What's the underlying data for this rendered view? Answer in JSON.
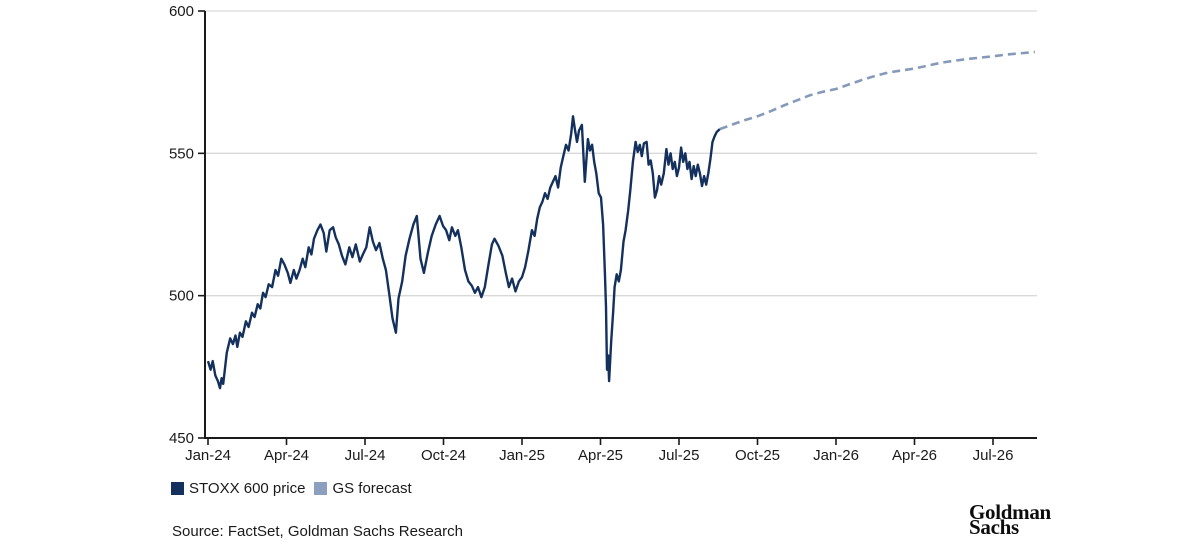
{
  "chart_data": {
    "type": "line",
    "title": "",
    "xlabel": "",
    "ylabel": "",
    "grid": true,
    "legend_position": "bottom-left",
    "y_axis": {
      "ticks": [
        450,
        500,
        550,
        600
      ],
      "range": [
        450,
        600
      ]
    },
    "x_axis": {
      "unit": "months-since-Jan-2024",
      "ticks": [
        {
          "label": "Jan-24",
          "m": 0
        },
        {
          "label": "Apr-24",
          "m": 3
        },
        {
          "label": "Jul-24",
          "m": 6
        },
        {
          "label": "Oct-24",
          "m": 9
        },
        {
          "label": "Jan-25",
          "m": 12
        },
        {
          "label": "Apr-25",
          "m": 15
        },
        {
          "label": "Jul-25",
          "m": 18
        },
        {
          "label": "Oct-25",
          "m": 21
        },
        {
          "label": "Jan-26",
          "m": 24
        },
        {
          "label": "Apr-26",
          "m": 27
        },
        {
          "label": "Jul-26",
          "m": 30
        }
      ]
    },
    "series": [
      {
        "name": "STOXX 600 price",
        "style": "solid",
        "color": "#14315e",
        "points": [
          [
            0.0,
            477
          ],
          [
            0.1,
            474
          ],
          [
            0.18,
            477
          ],
          [
            0.28,
            472
          ],
          [
            0.38,
            470
          ],
          [
            0.46,
            467.5
          ],
          [
            0.52,
            471
          ],
          [
            0.58,
            469
          ],
          [
            0.72,
            480
          ],
          [
            0.85,
            485
          ],
          [
            0.95,
            483
          ],
          [
            1.05,
            486
          ],
          [
            1.12,
            482
          ],
          [
            1.22,
            487
          ],
          [
            1.32,
            485.5
          ],
          [
            1.45,
            491
          ],
          [
            1.55,
            489
          ],
          [
            1.68,
            494
          ],
          [
            1.78,
            492.5
          ],
          [
            1.9,
            497
          ],
          [
            2.0,
            495.5
          ],
          [
            2.1,
            501
          ],
          [
            2.2,
            499.5
          ],
          [
            2.32,
            504
          ],
          [
            2.45,
            503
          ],
          [
            2.58,
            509
          ],
          [
            2.68,
            507
          ],
          [
            2.8,
            513
          ],
          [
            2.92,
            511
          ],
          [
            3.05,
            508
          ],
          [
            3.15,
            504.5
          ],
          [
            3.28,
            509
          ],
          [
            3.38,
            506
          ],
          [
            3.5,
            509
          ],
          [
            3.62,
            513
          ],
          [
            3.72,
            510
          ],
          [
            3.85,
            517
          ],
          [
            3.95,
            514.5
          ],
          [
            4.05,
            520
          ],
          [
            4.18,
            523
          ],
          [
            4.3,
            525
          ],
          [
            4.42,
            522
          ],
          [
            4.52,
            515.5
          ],
          [
            4.65,
            523
          ],
          [
            4.78,
            524
          ],
          [
            4.88,
            520.5
          ],
          [
            5.0,
            518
          ],
          [
            5.12,
            514
          ],
          [
            5.25,
            511
          ],
          [
            5.4,
            517
          ],
          [
            5.52,
            513.5
          ],
          [
            5.65,
            518
          ],
          [
            5.8,
            512
          ],
          [
            5.92,
            514.5
          ],
          [
            6.05,
            517
          ],
          [
            6.18,
            524
          ],
          [
            6.3,
            519
          ],
          [
            6.42,
            516
          ],
          [
            6.55,
            518.5
          ],
          [
            6.68,
            513
          ],
          [
            6.8,
            509
          ],
          [
            6.92,
            501
          ],
          [
            7.05,
            492
          ],
          [
            7.18,
            487
          ],
          [
            7.28,
            499
          ],
          [
            7.42,
            505
          ],
          [
            7.55,
            514
          ],
          [
            7.7,
            520
          ],
          [
            7.85,
            525
          ],
          [
            7.98,
            528
          ],
          [
            8.12,
            513
          ],
          [
            8.25,
            508
          ],
          [
            8.4,
            515
          ],
          [
            8.55,
            521
          ],
          [
            8.7,
            525
          ],
          [
            8.85,
            528
          ],
          [
            8.98,
            524.5
          ],
          [
            9.1,
            523
          ],
          [
            9.22,
            519.5
          ],
          [
            9.32,
            524
          ],
          [
            9.45,
            521
          ],
          [
            9.55,
            523
          ],
          [
            9.68,
            517
          ],
          [
            9.82,
            509
          ],
          [
            9.95,
            505
          ],
          [
            10.08,
            503.5
          ],
          [
            10.2,
            501
          ],
          [
            10.32,
            503
          ],
          [
            10.45,
            499.5
          ],
          [
            10.58,
            503
          ],
          [
            10.72,
            511
          ],
          [
            10.85,
            518
          ],
          [
            10.95,
            520
          ],
          [
            11.1,
            517.5
          ],
          [
            11.25,
            514
          ],
          [
            11.38,
            508
          ],
          [
            11.5,
            503
          ],
          [
            11.62,
            506
          ],
          [
            11.75,
            501.5
          ],
          [
            11.88,
            505
          ],
          [
            12.0,
            506.5
          ],
          [
            12.12,
            510
          ],
          [
            12.25,
            516
          ],
          [
            12.38,
            523
          ],
          [
            12.48,
            521
          ],
          [
            12.58,
            527
          ],
          [
            12.68,
            531
          ],
          [
            12.78,
            533
          ],
          [
            12.88,
            536
          ],
          [
            12.98,
            534
          ],
          [
            13.08,
            538
          ],
          [
            13.18,
            540
          ],
          [
            13.28,
            542
          ],
          [
            13.38,
            538
          ],
          [
            13.48,
            545
          ],
          [
            13.58,
            549
          ],
          [
            13.68,
            553
          ],
          [
            13.78,
            551
          ],
          [
            13.88,
            557
          ],
          [
            13.95,
            563
          ],
          [
            14.03,
            558
          ],
          [
            14.1,
            554
          ],
          [
            14.18,
            558
          ],
          [
            14.29,
            560
          ],
          [
            14.4,
            540
          ],
          [
            14.52,
            555
          ],
          [
            14.6,
            551
          ],
          [
            14.68,
            553
          ],
          [
            14.76,
            547
          ],
          [
            14.84,
            543
          ],
          [
            14.93,
            536
          ],
          [
            15.02,
            534.5
          ],
          [
            15.1,
            525
          ],
          [
            15.17,
            508
          ],
          [
            15.21,
            496
          ],
          [
            15.25,
            474
          ],
          [
            15.29,
            479
          ],
          [
            15.33,
            470
          ],
          [
            15.41,
            484
          ],
          [
            15.48,
            494
          ],
          [
            15.54,
            503
          ],
          [
            15.62,
            507.5
          ],
          [
            15.7,
            505
          ],
          [
            15.78,
            509
          ],
          [
            15.88,
            519
          ],
          [
            15.96,
            523
          ],
          [
            16.06,
            530
          ],
          [
            16.14,
            537
          ],
          [
            16.24,
            547
          ],
          [
            16.34,
            554
          ],
          [
            16.42,
            550.5
          ],
          [
            16.5,
            553
          ],
          [
            16.58,
            549
          ],
          [
            16.66,
            553.5
          ],
          [
            16.76,
            554
          ],
          [
            16.84,
            546
          ],
          [
            16.92,
            547.5
          ],
          [
            17.0,
            543
          ],
          [
            17.08,
            534.5
          ],
          [
            17.16,
            537
          ],
          [
            17.24,
            542
          ],
          [
            17.32,
            539
          ],
          [
            17.42,
            543
          ],
          [
            17.52,
            551.5
          ],
          [
            17.6,
            546
          ],
          [
            17.68,
            550
          ],
          [
            17.76,
            544.5
          ],
          [
            17.84,
            547
          ],
          [
            17.92,
            542
          ],
          [
            18.0,
            545
          ],
          [
            18.08,
            552
          ],
          [
            18.16,
            547
          ],
          [
            18.24,
            550
          ],
          [
            18.32,
            544.5
          ],
          [
            18.4,
            547
          ],
          [
            18.48,
            541
          ],
          [
            18.56,
            545.5
          ],
          [
            18.64,
            542
          ],
          [
            18.72,
            546
          ],
          [
            18.8,
            543
          ],
          [
            18.88,
            538.5
          ],
          [
            18.96,
            542
          ],
          [
            19.04,
            539
          ],
          [
            19.12,
            543
          ],
          [
            19.2,
            548
          ],
          [
            19.28,
            554
          ],
          [
            19.36,
            556
          ],
          [
            19.44,
            557.5
          ],
          [
            19.56,
            558.5
          ]
        ]
      },
      {
        "name": "GS forecast",
        "style": "dashed",
        "color": "#8599ba",
        "points": [
          [
            19.56,
            558.5
          ],
          [
            20.0,
            560
          ],
          [
            20.5,
            561.6
          ],
          [
            21.0,
            563
          ],
          [
            21.5,
            564.8
          ],
          [
            22.0,
            566.8
          ],
          [
            22.5,
            568.6
          ],
          [
            23.0,
            570.4
          ],
          [
            23.5,
            571.6
          ],
          [
            24.0,
            572.6
          ],
          [
            24.5,
            574.2
          ],
          [
            25.0,
            575.8
          ],
          [
            25.5,
            577.2
          ],
          [
            26.0,
            578.4
          ],
          [
            26.5,
            579.1
          ],
          [
            27.0,
            579.8
          ],
          [
            27.5,
            580.8
          ],
          [
            28.0,
            581.8
          ],
          [
            28.5,
            582.5
          ],
          [
            29.0,
            583.1
          ],
          [
            29.5,
            583.6
          ],
          [
            30.0,
            584.1
          ],
          [
            30.5,
            584.7
          ],
          [
            31.0,
            585.1
          ],
          [
            31.6,
            585.6
          ]
        ]
      }
    ]
  },
  "legend": {
    "items": [
      {
        "label": "STOXX 600 price",
        "color": "#14315e"
      },
      {
        "label": "GS forecast",
        "color": "#8b9fbe"
      }
    ]
  },
  "footer": {
    "source": "Source: FactSet, Goldman Sachs Research",
    "logo_line1": "Goldman",
    "logo_line2": "Sachs"
  },
  "style": {
    "gridline_color": "#d9d9d7",
    "axis_color": "#1a1a1a",
    "background": "#ffffff"
  }
}
